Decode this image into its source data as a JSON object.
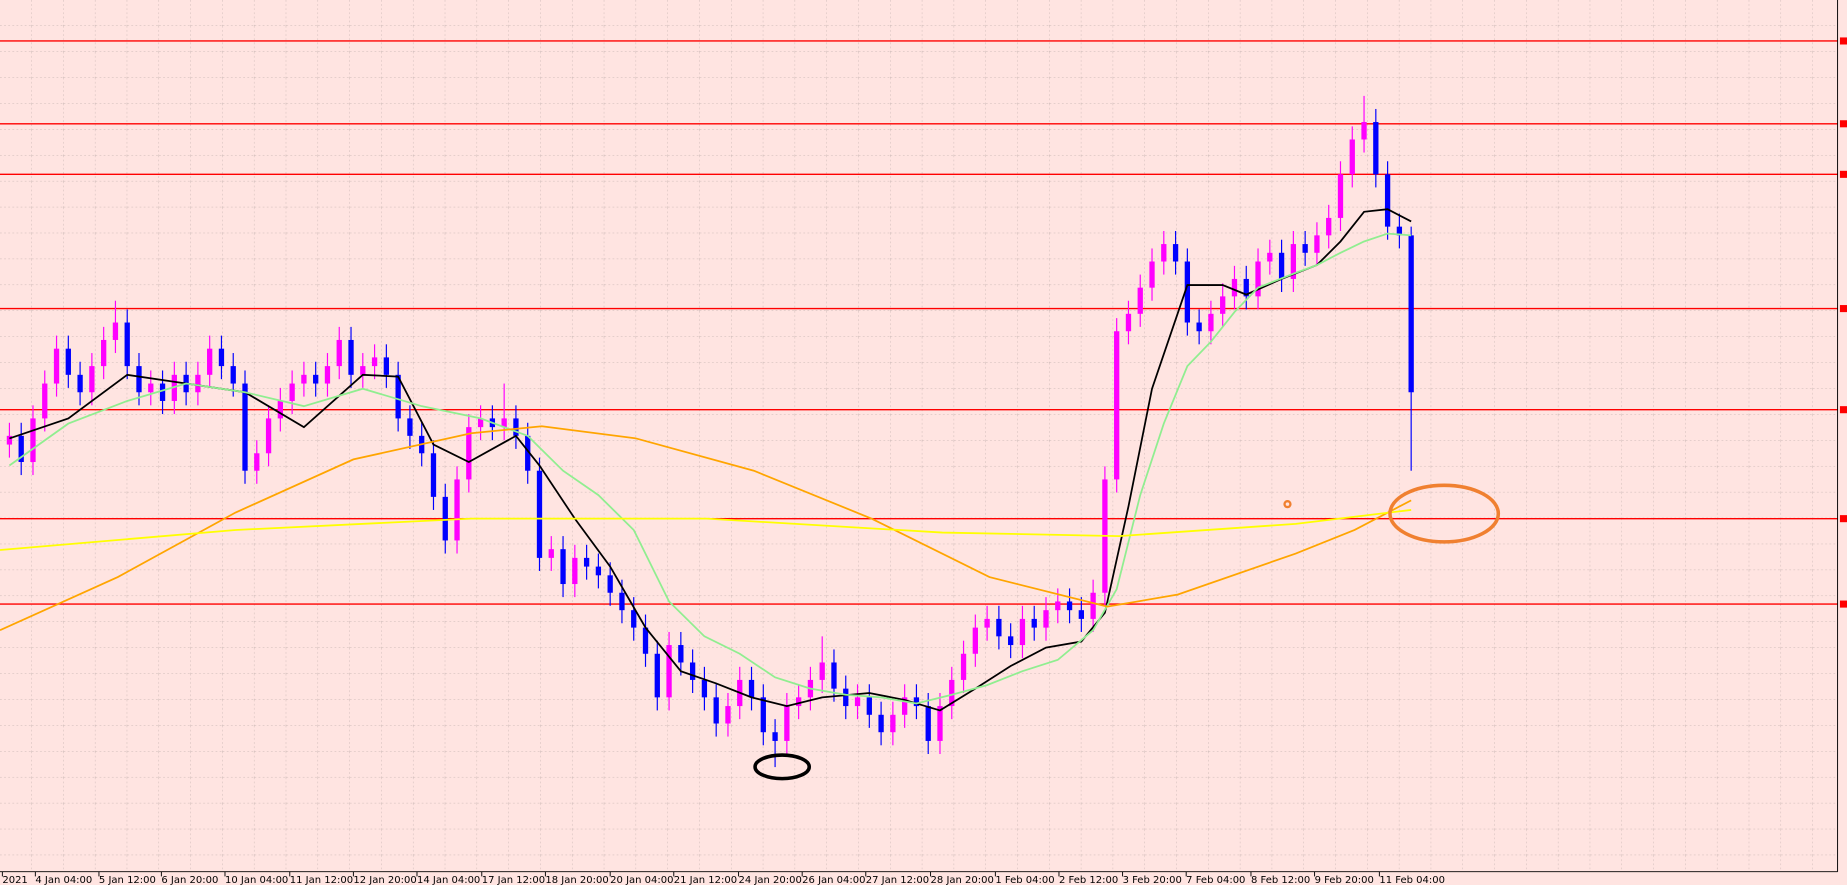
{
  "chart_data": {
    "type": "candlestick",
    "bull_color": "#ff00ff",
    "bear_color": "#0000ff",
    "background": "#ffe4e1",
    "ylim": [
      0,
      100
    ],
    "xlim": [
      -0.8,
      155.2
    ],
    "xticks": [
      {
        "value": -0.6,
        "label": "2021"
      },
      {
        "value": 2.2,
        "label": "4 Jan 04:00"
      },
      {
        "value": 7.6,
        "label": "5 Jan 12:00"
      },
      {
        "value": 12.9,
        "label": "6 Jan 20:00"
      },
      {
        "value": 18.3,
        "label": "10 Jan 04:00"
      },
      {
        "value": 23.8,
        "label": "11 Jan 12:00"
      },
      {
        "value": 29.2,
        "label": "12 Jan 20:00"
      },
      {
        "value": 34.6,
        "label": "14 Jan 04:00"
      },
      {
        "value": 40.1,
        "label": "17 Jan 12:00"
      },
      {
        "value": 45.5,
        "label": "18 Jan 20:00"
      },
      {
        "value": 51,
        "label": "20 Jan 04:00"
      },
      {
        "value": 56.4,
        "label": "21 Jan 12:00"
      },
      {
        "value": 61.9,
        "label": "24 Jan 20:00"
      },
      {
        "value": 67.3,
        "label": "26 Jan 04:00"
      },
      {
        "value": 72.7,
        "label": "27 Jan 12:00"
      },
      {
        "value": 78.2,
        "label": "28 Jan 20:00"
      },
      {
        "value": 83.7,
        "label": "1 Feb 04:00"
      },
      {
        "value": 89.1,
        "label": "2 Feb 12:00"
      },
      {
        "value": 94.5,
        "label": "3 Feb 20:00"
      },
      {
        "value": 99.9,
        "label": "7 Feb 04:00"
      },
      {
        "value": 105.4,
        "label": "8 Feb 12:00"
      },
      {
        "value": 110.8,
        "label": "9 Feb 20:00"
      },
      {
        "value": 116.3,
        "label": "11 Feb 04:00"
      }
    ],
    "open": [
      49,
      50,
      47,
      52,
      56,
      60,
      57,
      55,
      58,
      61,
      63,
      58,
      55,
      56,
      54,
      57,
      55,
      57,
      60,
      58,
      56,
      46,
      48,
      52,
      54,
      56,
      57,
      56,
      58,
      61,
      57,
      58,
      59,
      57,
      52,
      50,
      48,
      43,
      38,
      45,
      51,
      52,
      51,
      52,
      50,
      46,
      36,
      37,
      33,
      36,
      35,
      34,
      32,
      30,
      28,
      25,
      20,
      26,
      24,
      22,
      20,
      17,
      19,
      22,
      20,
      16,
      15,
      19,
      20,
      22,
      24,
      21,
      19,
      20,
      18,
      16,
      18,
      20,
      19,
      15,
      19,
      22,
      25,
      28,
      29,
      27,
      26,
      29,
      28,
      30,
      31,
      30,
      29,
      32,
      45,
      62,
      64,
      67,
      70,
      72,
      70,
      63,
      62,
      64,
      66,
      68,
      66,
      70,
      71,
      68,
      72,
      71,
      73,
      75,
      80,
      84,
      86,
      80,
      74,
      73
    ],
    "high": [
      51.5,
      51.5,
      53.5,
      57.5,
      61.5,
      61.5,
      58.5,
      59.5,
      62.5,
      65.5,
      64.5,
      59.5,
      57.5,
      57.5,
      58.5,
      58.5,
      58.5,
      61.5,
      61.5,
      59.5,
      57.5,
      49.5,
      53.5,
      55.5,
      57.5,
      58.5,
      58.5,
      59.5,
      62.5,
      62.5,
      59.5,
      60.5,
      60.5,
      58.5,
      53.5,
      51.5,
      49.5,
      44.5,
      46.5,
      52.5,
      53.5,
      53.5,
      56,
      53.5,
      51.5,
      47.5,
      38.5,
      38.5,
      37.5,
      37.5,
      36.5,
      35.5,
      33.5,
      31.5,
      29.5,
      26.5,
      27.5,
      27.5,
      25.5,
      23.5,
      21.5,
      20.5,
      23.5,
      23.5,
      21.5,
      17.5,
      20.5,
      21.5,
      23.5,
      27,
      25.5,
      22.5,
      21.5,
      21.5,
      19.5,
      19.5,
      21.5,
      21.5,
      20.5,
      20.5,
      23.5,
      26.5,
      29.5,
      30.5,
      30.5,
      28.5,
      30.5,
      30.5,
      31.5,
      32.5,
      32.5,
      31.5,
      33.5,
      46.5,
      63.5,
      65.5,
      68.5,
      71.5,
      73.5,
      73.5,
      71.5,
      64.5,
      65.5,
      67.5,
      69.5,
      69.5,
      71.5,
      72.5,
      72.5,
      73.5,
      73.5,
      74.5,
      76.5,
      81.5,
      85.5,
      89,
      87.5,
      81.5,
      75.5,
      74
    ],
    "low": [
      47.5,
      45.5,
      45.5,
      50.5,
      54.5,
      55.5,
      53.5,
      53.5,
      56.5,
      59.5,
      56.5,
      53.5,
      53.5,
      52.5,
      52.5,
      53.5,
      53.5,
      55.5,
      56.5,
      54.5,
      44.5,
      44.5,
      46.5,
      50.5,
      52.5,
      54.5,
      54.5,
      54.5,
      56.5,
      55.5,
      55.5,
      56.5,
      55.5,
      50.5,
      48.5,
      46.5,
      41.5,
      36.5,
      36.5,
      43.5,
      49.5,
      49.5,
      49.5,
      48.5,
      44.5,
      34.5,
      34.5,
      31.5,
      31.5,
      33.5,
      32.5,
      30.5,
      28.5,
      26.5,
      23.5,
      18.5,
      18.5,
      22.5,
      20.5,
      18.5,
      15.5,
      15.5,
      17.5,
      18.5,
      14.5,
      12,
      13.5,
      17.5,
      18.5,
      20.5,
      19.5,
      17.5,
      17.5,
      16.5,
      14.5,
      14.5,
      16.5,
      17.5,
      13.5,
      13.5,
      17.5,
      20.5,
      23.5,
      26.5,
      25.5,
      24.5,
      24.5,
      26.5,
      26.5,
      28.5,
      28.5,
      27.5,
      27.5,
      30.5,
      43.5,
      60.5,
      62.5,
      65.5,
      68.5,
      68.5,
      61.5,
      60.5,
      60.5,
      62.5,
      64.5,
      64.5,
      64.5,
      68.5,
      66.5,
      66.5,
      69.5,
      69.5,
      71.5,
      73.5,
      78.5,
      82.5,
      78.5,
      72.5,
      71.5,
      46
    ],
    "close": [
      50,
      47,
      52,
      56,
      60,
      57,
      55,
      58,
      61,
      63,
      58,
      55,
      56,
      54,
      57,
      55,
      57,
      60,
      58,
      56,
      46,
      48,
      52,
      54,
      56,
      57,
      56,
      58,
      61,
      57,
      58,
      59,
      57,
      52,
      50,
      48,
      43,
      38,
      45,
      51,
      52,
      51,
      52,
      50,
      46,
      36,
      37,
      33,
      36,
      35,
      34,
      32,
      30,
      28,
      25,
      20,
      26,
      24,
      22,
      20,
      17,
      19,
      22,
      20,
      16,
      15,
      19,
      20,
      22,
      24,
      21,
      19,
      20,
      18,
      16,
      18,
      20,
      19,
      15,
      19,
      22,
      25,
      28,
      29,
      27,
      26,
      29,
      28,
      30,
      31,
      30,
      29,
      32,
      45,
      62,
      64,
      67,
      70,
      72,
      70,
      63,
      62,
      64,
      66,
      68,
      66,
      70,
      71,
      68,
      72,
      71,
      73,
      75,
      80,
      84,
      86,
      80,
      74,
      73,
      55
    ],
    "hlines": [
      95.3,
      85.8,
      80,
      64.6,
      53,
      40.5,
      30.7
    ],
    "hline_color": "#ff0000",
    "lines": [
      {
        "color": "#000000",
        "x": [
          0,
          5,
          10,
          15,
          20,
          25,
          30,
          33,
          36,
          39,
          43,
          45,
          48,
          51,
          54,
          57,
          60,
          63,
          66,
          69,
          73,
          76,
          79,
          82,
          85,
          88,
          91,
          93,
          95,
          97,
          100,
          103,
          105,
          108,
          111,
          113,
          115,
          117,
          119
        ],
        "values": [
          49.7,
          52,
          57,
          56,
          55,
          51,
          57,
          56.8,
          49,
          47,
          50,
          46.6,
          40.5,
          35,
          28,
          23,
          21.6,
          20,
          19,
          20,
          20.5,
          19.7,
          18.5,
          21,
          23.6,
          25.7,
          26.4,
          29.7,
          41.9,
          55.4,
          67.3,
          67.3,
          66.2,
          68,
          69.6,
          72.3,
          75.7,
          76,
          74.6
        ]
      },
      {
        "color": "#90ee90",
        "x": [
          0,
          5,
          10,
          15,
          20,
          25,
          30,
          35,
          40,
          44,
          47,
          50,
          53,
          56,
          59,
          62,
          65,
          68,
          71,
          74,
          77,
          80,
          83,
          86,
          89,
          92,
          94,
          96,
          98,
          100,
          102,
          104,
          106,
          109,
          111,
          113,
          115,
          117,
          119
        ],
        "values": [
          46.6,
          51.4,
          54,
          56,
          55,
          53.4,
          55.4,
          53.4,
          52,
          50,
          46,
          43.2,
          39.2,
          31,
          27,
          25,
          22.3,
          21,
          20.3,
          20,
          19.3,
          20.3,
          21.4,
          23,
          24.3,
          27.7,
          32.4,
          43.2,
          51.4,
          58,
          60.8,
          64.2,
          67,
          68.6,
          69.6,
          71,
          72.3,
          73.2,
          73
        ]
      },
      {
        "color": "#ffa500",
        "x": [
          -0.8,
          9.2,
          19.2,
          29.2,
          39.2,
          45.2,
          53.2,
          63.2,
          73.2,
          83.2,
          93.2,
          99.2,
          109.2,
          114.2,
          119
        ],
        "values": [
          27.7,
          33.8,
          41.2,
          47.3,
          50.3,
          51.1,
          49.7,
          46,
          40.5,
          33.8,
          30.4,
          31.8,
          36.5,
          39.2,
          42.6
        ]
      },
      {
        "color": "#ffff00",
        "x": [
          -0.8,
          19.2,
          39.2,
          59.2,
          79.2,
          94.2,
          109.2,
          119
        ],
        "values": [
          36.9,
          39.2,
          40.5,
          40.5,
          38.9,
          38.5,
          39.9,
          41.5
        ]
      }
    ]
  }
}
